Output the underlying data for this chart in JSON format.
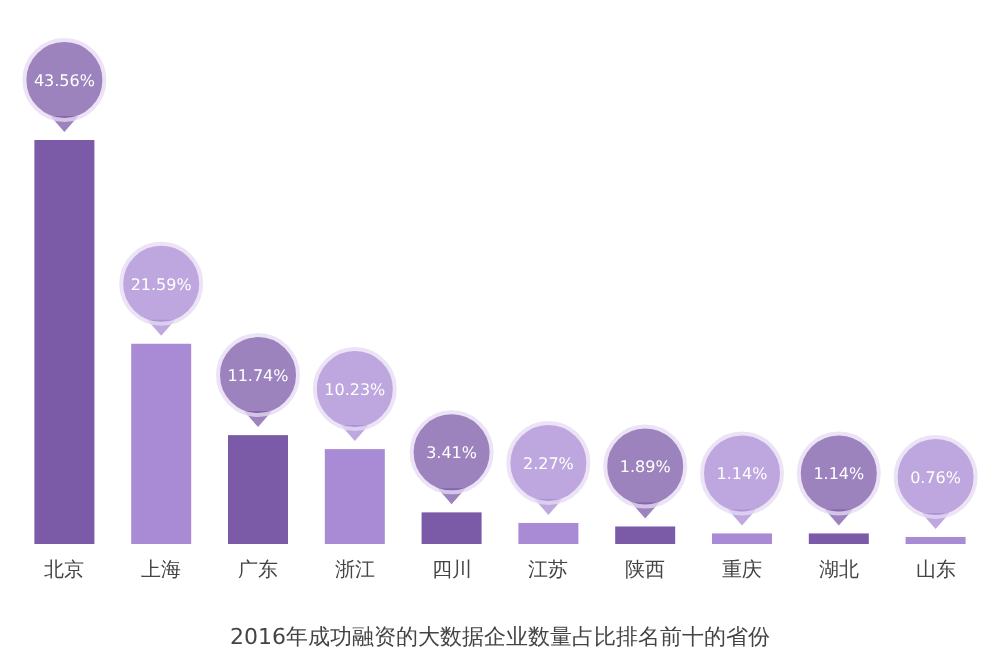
{
  "chart_data": {
    "type": "bar",
    "title": "2016年成功融资的大数据企业数量占比排名前十的省份",
    "categories": [
      "北京",
      "上海",
      "广东",
      "浙江",
      "四川",
      "江苏",
      "陕西",
      "重庆",
      "湖北",
      "山东"
    ],
    "values": [
      43.56,
      21.59,
      11.74,
      10.23,
      3.41,
      2.27,
      1.89,
      1.14,
      1.14,
      0.76
    ],
    "value_labels": [
      "43.56%",
      "21.59%",
      "11.74%",
      "10.23%",
      "3.41%",
      "2.27%",
      "1.89%",
      "1.14%",
      "1.14%",
      "0.76%"
    ],
    "colors": [
      "#7b5aa8",
      "#a98ad4",
      "#7b5aa8",
      "#a98ad4",
      "#7b5aa8",
      "#a98ad4",
      "#7b5aa8",
      "#a98ad4",
      "#7b5aa8",
      "#a98ad4"
    ],
    "grid": false
  }
}
